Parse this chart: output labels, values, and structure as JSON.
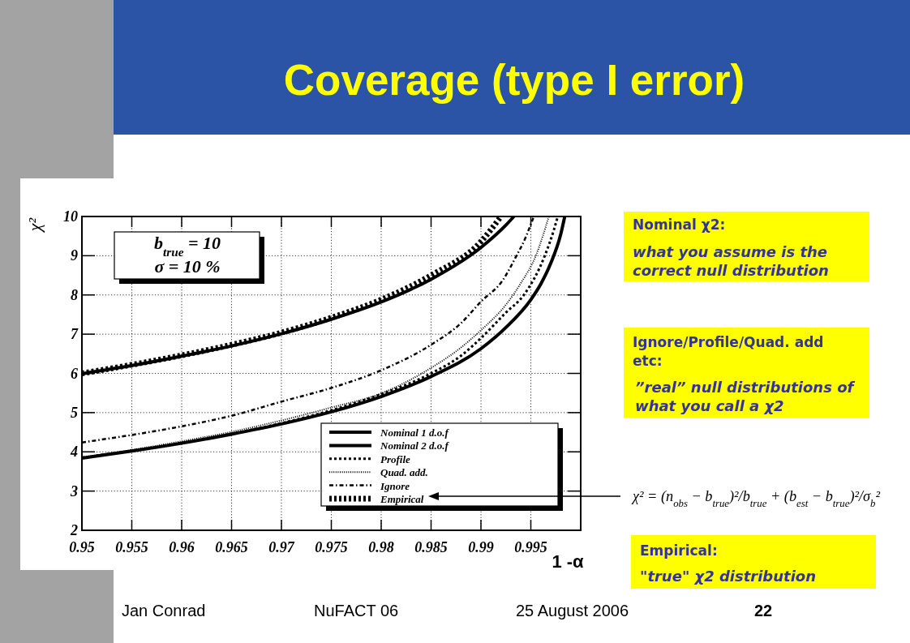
{
  "chart_data": {
    "type": "line",
    "title": "Coverage (type I error)",
    "xlabel": "1 -α",
    "ylabel": "χ²",
    "xlim": [
      0.95,
      1
    ],
    "ylim": [
      2,
      10
    ],
    "xticks": [
      0.95,
      0.955,
      0.96,
      0.965,
      0.97,
      0.975,
      0.98,
      0.985,
      0.99,
      0.995
    ],
    "yticks": [
      2,
      3,
      4,
      5,
      6,
      7,
      8,
      9,
      10
    ],
    "grid": true,
    "legend": "bottom right",
    "series": [
      {
        "name": "Nominal 1 d.o.f",
        "color": "#000000",
        "line_style": "solid",
        "x": [
          0.95,
          0.955,
          0.96,
          0.965,
          0.97,
          0.975,
          0.98,
          0.985,
          0.99,
          0.9925,
          0.995,
          0.996,
          0.997,
          0.998,
          0.9984
        ],
        "values": [
          3.84,
          4.02,
          4.22,
          4.45,
          4.71,
          5.02,
          5.41,
          5.92,
          6.63,
          7.17,
          7.88,
          8.28,
          8.81,
          9.55,
          10
        ]
      },
      {
        "name": "Nominal 2 d.o.f",
        "color": "#000000",
        "line_style": "solid",
        "x": [
          0.95,
          0.955,
          0.96,
          0.965,
          0.97,
          0.975,
          0.98,
          0.985,
          0.99,
          0.9925,
          0.9933
        ],
        "values": [
          5.99,
          6.2,
          6.44,
          6.7,
          7.01,
          7.38,
          7.82,
          8.4,
          9.21,
          9.78,
          10
        ]
      },
      {
        "name": "Profile",
        "color": "#000000",
        "line_style": "dashed",
        "x": [
          0.95,
          0.955,
          0.96,
          0.965,
          0.97,
          0.975,
          0.98,
          0.985,
          0.988,
          0.99,
          0.9925,
          0.9943,
          0.9964,
          0.9973,
          0.9977
        ],
        "values": [
          3.85,
          4.03,
          4.23,
          4.46,
          4.73,
          5.06,
          5.47,
          6.0,
          6.45,
          6.9,
          7.55,
          8.0,
          9.0,
          9.65,
          10
        ]
      },
      {
        "name": "Quad. add.",
        "color": "#000000",
        "line_style": "dotted",
        "x": [
          0.95,
          0.955,
          0.96,
          0.965,
          0.97,
          0.975,
          0.98,
          0.985,
          0.988,
          0.99,
          0.9925,
          0.994,
          0.9955,
          0.9962,
          0.9968
        ],
        "values": [
          3.86,
          4.05,
          4.27,
          4.51,
          4.8,
          5.13,
          5.49,
          6.14,
          6.66,
          7.1,
          7.75,
          8.3,
          9,
          9.5,
          10
        ]
      },
      {
        "name": "Ignore",
        "color": "#000000",
        "line_style": "dashdot",
        "x": [
          0.95,
          0.955,
          0.96,
          0.965,
          0.97,
          0.975,
          0.98,
          0.985,
          0.988,
          0.99,
          0.9922,
          0.9935,
          0.9944,
          0.995,
          0.9953
        ],
        "values": [
          4.24,
          4.43,
          4.65,
          4.92,
          5.28,
          5.63,
          6.08,
          6.73,
          7.28,
          7.83,
          8.38,
          8.97,
          9.42,
          9.8,
          10
        ]
      },
      {
        "name": "Empirical",
        "color": "#000000",
        "line_style": "dashed",
        "x": [
          0.95,
          0.955,
          0.96,
          0.965,
          0.97,
          0.975,
          0.98,
          0.985,
          0.99,
          0.992
        ],
        "values": [
          6,
          6.22,
          6.46,
          6.73,
          7.04,
          7.42,
          7.88,
          8.5,
          9.36,
          10
        ]
      }
    ],
    "annotations": [
      "b$_{true}$ = 10",
      "σ = 10 %",
      "Nominal χ2:",
      "what you assume is the correct null distribution",
      "Ignore/Profile/Quad. add etc:",
      "”real” null distributions of what you call a χ2",
      "χ² = (n$_{obs}$ − b$_{true}$)²/b$_{true}$ + (b$_{est}$ − b$_{true}$)²/σ$_{b}$²",
      "Empirical:",
      "\"true\" χ2 distribution",
      "Jan Conrad",
      "NuFACT 06",
      "25 August 2006",
      "22"
    ]
  }
}
